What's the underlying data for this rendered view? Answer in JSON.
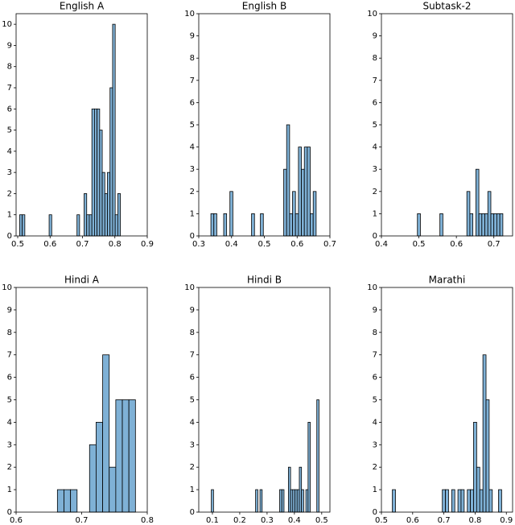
{
  "chart_data": [
    {
      "type": "histogram",
      "title": "English A",
      "color": "#7fb1d6",
      "bins": [
        0.506,
        0.514,
        0.522,
        0.597,
        0.605,
        0.683,
        0.691,
        0.705,
        0.713,
        0.721,
        0.729,
        0.737,
        0.745,
        0.753,
        0.761,
        0.769,
        0.777,
        0.785,
        0.793,
        0.801,
        0.809,
        0.817
      ],
      "values": [
        1,
        1,
        0,
        1,
        0,
        1,
        0,
        2,
        1,
        1,
        6,
        6,
        6,
        5,
        3,
        2,
        3,
        7,
        10,
        1,
        2
      ],
      "xlim": [
        0.495,
        0.9
      ],
      "xticks": [
        0.5,
        0.6,
        0.7,
        0.8,
        0.9
      ],
      "ylim": [
        0,
        10.5
      ],
      "yticks": [
        0,
        1,
        2,
        3,
        4,
        5,
        6,
        7,
        8,
        9,
        10
      ]
    },
    {
      "type": "histogram",
      "title": "English B",
      "color": "#7fb1d6",
      "bins": [
        0.337,
        0.346,
        0.355,
        0.376,
        0.385,
        0.395,
        0.404,
        0.461,
        0.47,
        0.488,
        0.497,
        0.559,
        0.568,
        0.577,
        0.586,
        0.595,
        0.604,
        0.613,
        0.622,
        0.631,
        0.64,
        0.649,
        0.658
      ],
      "values": [
        1,
        1,
        0,
        1,
        0,
        2,
        0,
        1,
        0,
        1,
        0,
        3,
        5,
        1,
        2,
        1,
        4,
        3,
        4,
        4,
        1,
        2
      ],
      "xlim": [
        0.3,
        0.7
      ],
      "xticks": [
        0.3,
        0.4,
        0.5,
        0.6,
        0.7
      ],
      "ylim": [
        0,
        10
      ],
      "yticks": [
        0,
        1,
        2,
        3,
        4,
        5,
        6,
        7,
        8,
        9,
        10
      ]
    },
    {
      "type": "histogram",
      "title": "Subtask-2",
      "color": "#7fb1d6",
      "bins": [
        0.496,
        0.504,
        0.556,
        0.564,
        0.628,
        0.636,
        0.644,
        0.652,
        0.66,
        0.668,
        0.676,
        0.684,
        0.692,
        0.7,
        0.708,
        0.716,
        0.724
      ],
      "values": [
        1,
        0,
        1,
        0,
        2,
        1,
        0,
        3,
        1,
        1,
        1,
        2,
        1,
        1,
        1,
        1
      ],
      "xlim": [
        0.4,
        0.75
      ],
      "xticks": [
        0.4,
        0.5,
        0.6,
        0.7
      ],
      "ylim": [
        0,
        10
      ],
      "yticks": [
        0,
        1,
        2,
        3,
        4,
        5,
        6,
        7,
        8,
        9,
        10
      ]
    },
    {
      "type": "histogram",
      "title": "Hindi A",
      "color": "#7fb1d6",
      "bins": [
        0.663,
        0.673,
        0.683,
        0.693,
        0.712,
        0.722,
        0.732,
        0.742,
        0.752,
        0.762,
        0.772,
        0.782
      ],
      "values": [
        1,
        1,
        1,
        0,
        3,
        4,
        7,
        2,
        5,
        5,
        5
      ],
      "xlim": [
        0.6,
        0.8
      ],
      "xticks": [
        0.6,
        0.7,
        0.8
      ],
      "ylim": [
        0,
        10
      ],
      "yticks": [
        0,
        1,
        2,
        3,
        4,
        5,
        6,
        7,
        8,
        9,
        10
      ]
    },
    {
      "type": "histogram",
      "title": "Hindi B",
      "color": "#7fb1d6",
      "bins": [
        0.096,
        0.104,
        0.258,
        0.266,
        0.274,
        0.282,
        0.346,
        0.354,
        0.362,
        0.378,
        0.386,
        0.394,
        0.402,
        0.41,
        0.418,
        0.426,
        0.434,
        0.442,
        0.45,
        0.458,
        0.482,
        0.49
      ],
      "values": [
        1,
        0,
        1,
        0,
        1,
        0,
        1,
        1,
        0,
        2,
        1,
        1,
        1,
        1,
        2,
        1,
        0,
        1,
        4,
        0,
        5
      ],
      "xlim": [
        0.05,
        0.53
      ],
      "xticks": [
        0.1,
        0.2,
        0.3,
        0.4,
        0.5
      ],
      "ylim": [
        0,
        10
      ],
      "yticks": [
        0,
        1,
        2,
        3,
        4,
        5,
        6,
        7,
        8,
        9,
        10
      ]
    },
    {
      "type": "histogram",
      "title": "Marathi",
      "color": "#7fb1d6",
      "bins": [
        0.535,
        0.545,
        0.695,
        0.705,
        0.715,
        0.725,
        0.735,
        0.745,
        0.755,
        0.765,
        0.775,
        0.785,
        0.795,
        0.805,
        0.815,
        0.825,
        0.835,
        0.845,
        0.855,
        0.875,
        0.885
      ],
      "values": [
        1,
        0,
        1,
        1,
        0,
        1,
        0,
        1,
        1,
        0,
        1,
        1,
        4,
        2,
        1,
        7,
        5,
        1,
        0,
        1
      ],
      "xlim": [
        0.5,
        0.92
      ],
      "xticks": [
        0.5,
        0.6,
        0.7,
        0.8,
        0.9
      ],
      "ylim": [
        0,
        10
      ],
      "yticks": [
        0,
        1,
        2,
        3,
        4,
        5,
        6,
        7,
        8,
        9,
        10
      ]
    }
  ]
}
